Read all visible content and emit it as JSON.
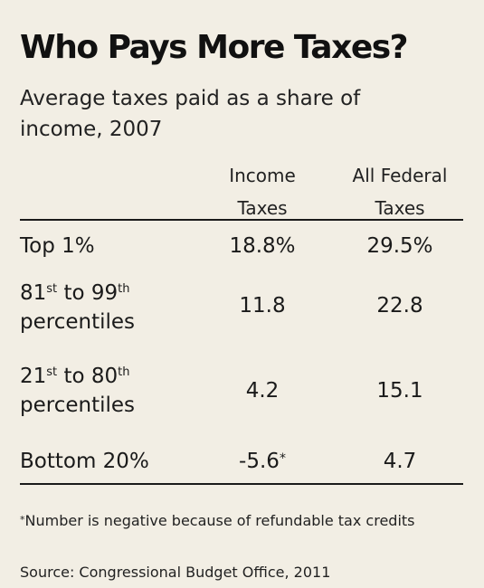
{
  "title": "Who Pays More Taxes?",
  "subtitle": "Average taxes paid as a share of income, 2007",
  "chart_data": {
    "type": "table",
    "title": "Who Pays More Taxes?",
    "subtitle": "Average taxes paid as a share of income, 2007",
    "columns": [
      {
        "line1": "Income",
        "line2": "Taxes"
      },
      {
        "line1": "All Federal",
        "line2": "Taxes"
      }
    ],
    "rows": [
      {
        "label": "Top 1%",
        "income": "18.8%",
        "federal": "29.5%",
        "income_note": ""
      },
      {
        "label_pre": "81",
        "label_sup1": "st",
        "label_mid": " to 99",
        "label_sup2": "th",
        "label_line2": "percentiles",
        "income": "11.8",
        "federal": "22.8",
        "income_note": ""
      },
      {
        "label_pre": "21",
        "label_sup1": "st",
        "label_mid": " to 80",
        "label_sup2": "th",
        "label_line2": "percentiles",
        "income": "4.2",
        "federal": "15.1",
        "income_note": ""
      },
      {
        "label": "Bottom 20%",
        "income": "-5.6",
        "federal": "4.7",
        "income_note": "*"
      }
    ],
    "values": {
      "income_taxes": [
        18.8,
        11.8,
        4.2,
        -5.6
      ],
      "all_federal_taxes": [
        29.5,
        22.8,
        15.1,
        4.7
      ]
    }
  },
  "footnote": {
    "marker": "*",
    "text": "Number is negative because of refundable tax credits"
  },
  "source": "Source: Congressional Budget Office, 2011"
}
